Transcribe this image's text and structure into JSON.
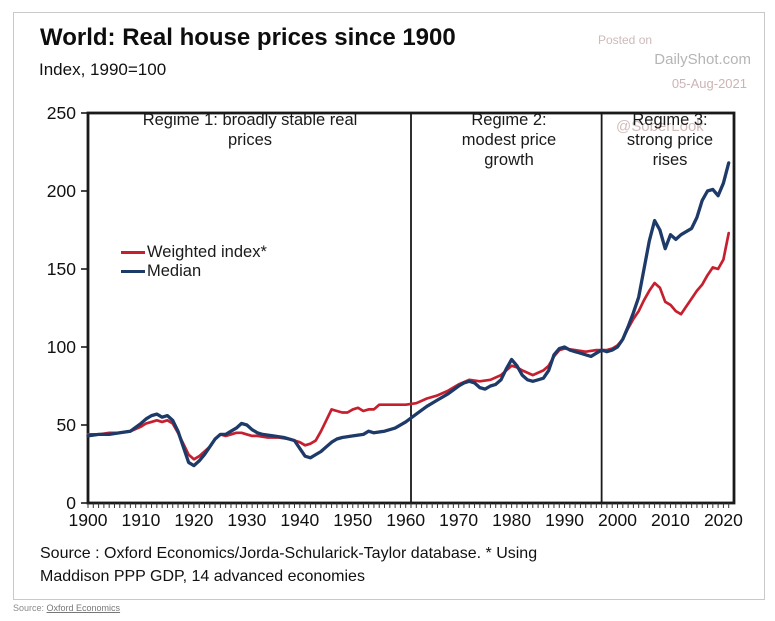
{
  "watermark": {
    "posted_on": "Posted on",
    "site": "DailyShot.com",
    "date": "05-Aug-2021",
    "handle": "@SoberLook"
  },
  "chart": {
    "title": "World: Real house prices since 1900",
    "subtitle": "Index, 1990=100",
    "source_note": "Source : Oxford Economics/Jorda-Schularick-Taylor database.  * Using Maddison PPP GDP, 14 advanced economies"
  },
  "footer": {
    "prefix": "Source: ",
    "link": "Oxford Economics"
  },
  "chart_data": {
    "type": "line",
    "title": "World: Real house prices since 1900",
    "subtitle": "Index, 1990=100",
    "xlabel": "",
    "ylabel": "Index, 1990=100",
    "xlim": [
      1900,
      2022
    ],
    "ylim": [
      0,
      250
    ],
    "x_ticks": [
      1900,
      1910,
      1920,
      1930,
      1940,
      1950,
      1960,
      1970,
      1980,
      1990,
      2000,
      2010,
      2020
    ],
    "y_ticks": [
      0,
      50,
      100,
      150,
      200,
      250
    ],
    "grid": false,
    "legend_position": "upper-left-inside",
    "frame_color": "#1a1a1a",
    "divider_years": [
      1961,
      1997
    ],
    "regimes": [
      {
        "label": "Regime 1: broadly stable real prices",
        "from": 1900,
        "to": 1961
      },
      {
        "label": "Regime 2: modest price growth",
        "from": 1961,
        "to": 1997
      },
      {
        "label": "Regime 3: strong price rises",
        "from": 1997,
        "to": 2022
      }
    ],
    "series": [
      {
        "name": "Weighted index*",
        "color": "#c6202f",
        "x": [
          1900,
          1902,
          1904,
          1906,
          1908,
          1910,
          1911,
          1912,
          1913,
          1914,
          1915,
          1916,
          1917,
          1918,
          1919,
          1920,
          1921,
          1922,
          1923,
          1924,
          1925,
          1926,
          1927,
          1928,
          1929,
          1930,
          1931,
          1932,
          1934,
          1936,
          1938,
          1940,
          1941,
          1942,
          1943,
          1944,
          1945,
          1946,
          1947,
          1948,
          1949,
          1950,
          1951,
          1952,
          1953,
          1954,
          1955,
          1956,
          1958,
          1960,
          1962,
          1964,
          1966,
          1968,
          1970,
          1972,
          1974,
          1976,
          1978,
          1979,
          1980,
          1981,
          1982,
          1984,
          1986,
          1987,
          1988,
          1989,
          1990,
          1992,
          1994,
          1996,
          1998,
          1999,
          2000,
          2001,
          2002,
          2003,
          2004,
          2005,
          2006,
          2007,
          2008,
          2009,
          2010,
          2011,
          2012,
          2013,
          2014,
          2015,
          2016,
          2017,
          2018,
          2019,
          2020,
          2021
        ],
        "y": [
          44,
          44,
          45,
          45,
          46,
          49,
          51,
          52,
          53,
          52,
          53,
          51,
          45,
          38,
          31,
          28,
          30,
          33,
          36,
          41,
          44,
          43,
          44,
          45,
          45,
          44,
          43,
          43,
          42,
          42,
          41,
          39,
          37,
          38,
          40,
          46,
          53,
          60,
          59,
          58,
          58,
          60,
          61,
          59,
          60,
          60,
          63,
          63,
          63,
          63,
          64,
          67,
          69,
          72,
          76,
          79,
          78,
          79,
          82,
          85,
          88,
          87,
          85,
          82,
          85,
          88,
          94,
          98,
          99,
          98,
          97,
          98,
          98,
          99,
          101,
          105,
          112,
          118,
          123,
          130,
          136,
          141,
          138,
          129,
          127,
          123,
          121,
          126,
          131,
          136,
          140,
          146,
          151,
          150,
          156,
          173
        ]
      },
      {
        "name": "Median",
        "color": "#1d3a68",
        "x": [
          1900,
          1902,
          1904,
          1906,
          1908,
          1910,
          1911,
          1912,
          1913,
          1914,
          1915,
          1916,
          1917,
          1918,
          1919,
          1920,
          1921,
          1922,
          1923,
          1924,
          1925,
          1926,
          1927,
          1928,
          1929,
          1930,
          1931,
          1932,
          1933,
          1935,
          1937,
          1939,
          1940,
          1941,
          1942,
          1943,
          1944,
          1945,
          1946,
          1947,
          1948,
          1950,
          1952,
          1953,
          1954,
          1956,
          1958,
          1960,
          1962,
          1964,
          1966,
          1968,
          1970,
          1971,
          1972,
          1973,
          1974,
          1975,
          1976,
          1977,
          1978,
          1979,
          1980,
          1981,
          1982,
          1983,
          1984,
          1985,
          1986,
          1987,
          1988,
          1989,
          1990,
          1991,
          1992,
          1993,
          1994,
          1995,
          1996,
          1997,
          1998,
          1999,
          2000,
          2001,
          2002,
          2003,
          2004,
          2005,
          2006,
          2007,
          2008,
          2009,
          2010,
          2011,
          2012,
          2013,
          2014,
          2015,
          2016,
          2017,
          2018,
          2019,
          2020,
          2021
        ],
        "y": [
          43,
          44,
          44,
          45,
          46,
          51,
          54,
          56,
          57,
          55,
          56,
          53,
          46,
          36,
          26,
          24,
          27,
          31,
          36,
          41,
          44,
          44,
          46,
          48,
          51,
          50,
          47,
          45,
          44,
          43,
          42,
          40,
          35,
          30,
          29,
          31,
          33,
          36,
          39,
          41,
          42,
          43,
          44,
          46,
          45,
          46,
          48,
          52,
          57,
          62,
          66,
          70,
          75,
          77,
          78,
          77,
          74,
          73,
          75,
          76,
          79,
          86,
          92,
          88,
          82,
          79,
          78,
          79,
          80,
          85,
          95,
          99,
          100,
          98,
          97,
          96,
          95,
          94,
          96,
          98,
          97,
          98,
          100,
          105,
          113,
          122,
          132,
          150,
          168,
          181,
          175,
          163,
          172,
          169,
          172,
          174,
          176,
          183,
          194,
          200,
          201,
          197,
          205,
          218
        ]
      }
    ]
  }
}
